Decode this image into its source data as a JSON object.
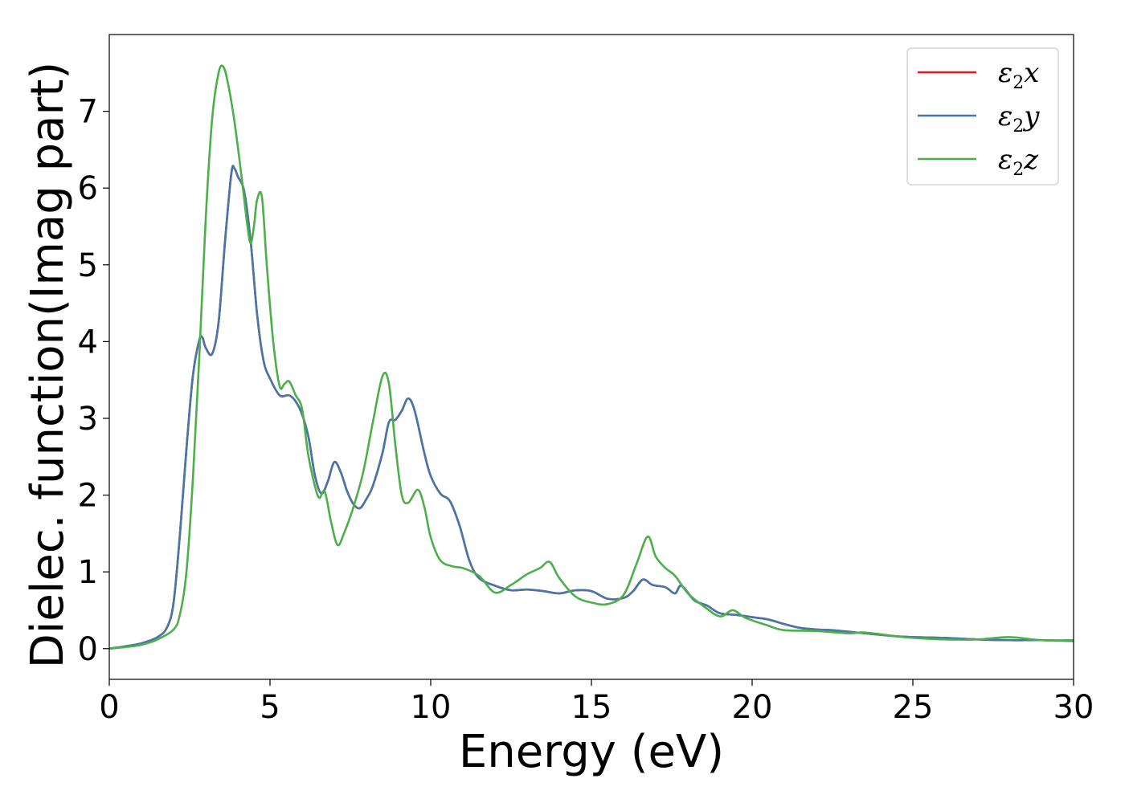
{
  "chart_data": {
    "type": "line",
    "xlabel": "Energy (eV)",
    "ylabel": "Dielec. function(Imag part)",
    "xlim": [
      0,
      30
    ],
    "ylim": [
      -0.4,
      8.0
    ],
    "xticks": [
      "0",
      "5",
      "10",
      "15",
      "20",
      "25",
      "30"
    ],
    "yticks": [
      "0",
      "1",
      "2",
      "3",
      "4",
      "5",
      "6",
      "7"
    ],
    "grid": false,
    "legend_position": "top-right",
    "series": [
      {
        "name": "ε₂x",
        "legend": {
          "base": "ε",
          "sub": "2",
          "var": "x"
        },
        "color": "#e41a1c",
        "x": [
          0,
          0.5,
          1.0,
          1.5,
          1.8,
          2.0,
          2.2,
          2.4,
          2.6,
          2.8,
          2.9,
          3.0,
          3.2,
          3.4,
          3.6,
          3.8,
          3.9,
          4.0,
          4.2,
          4.4,
          4.6,
          4.8,
          5.0,
          5.3,
          5.6,
          5.8,
          6.0,
          6.2,
          6.4,
          6.6,
          6.8,
          7.0,
          7.2,
          7.4,
          7.6,
          7.8,
          8.0,
          8.2,
          8.5,
          8.7,
          8.9,
          9.1,
          9.3,
          9.5,
          9.8,
          10.0,
          10.3,
          10.6,
          10.9,
          11.2,
          11.5,
          12.0,
          12.5,
          13.0,
          13.5,
          14.0,
          14.5,
          15.0,
          15.5,
          16.0,
          16.3,
          16.6,
          16.9,
          17.3,
          17.6,
          17.8,
          18.2,
          18.6,
          19.0,
          19.5,
          20.0,
          20.5,
          21.0,
          21.5,
          22.0,
          22.5,
          23.0,
          23.5,
          24.0,
          24.5,
          25.0,
          26.0,
          27.0,
          28.0,
          29.0,
          30.0
        ],
        "y": [
          0.0,
          0.03,
          0.07,
          0.15,
          0.28,
          0.6,
          1.5,
          2.6,
          3.55,
          4.02,
          4.05,
          3.92,
          3.84,
          4.25,
          5.3,
          6.2,
          6.25,
          6.15,
          5.95,
          5.3,
          4.35,
          3.75,
          3.52,
          3.3,
          3.3,
          3.22,
          3.05,
          2.75,
          2.25,
          2.02,
          2.18,
          2.43,
          2.3,
          2.05,
          1.88,
          1.83,
          1.95,
          2.12,
          2.55,
          2.95,
          2.98,
          3.1,
          3.26,
          3.1,
          2.55,
          2.25,
          2.02,
          1.92,
          1.6,
          1.15,
          0.92,
          0.82,
          0.76,
          0.77,
          0.75,
          0.72,
          0.76,
          0.75,
          0.65,
          0.66,
          0.75,
          0.9,
          0.83,
          0.8,
          0.72,
          0.82,
          0.63,
          0.56,
          0.46,
          0.44,
          0.41,
          0.38,
          0.32,
          0.27,
          0.25,
          0.24,
          0.22,
          0.2,
          0.18,
          0.16,
          0.15,
          0.14,
          0.12,
          0.11,
          0.11,
          0.1
        ]
      },
      {
        "name": "ε₂y",
        "legend": {
          "base": "ε",
          "sub": "2",
          "var": "y"
        },
        "color": "#4477aa",
        "x": [
          0,
          0.5,
          1.0,
          1.5,
          1.8,
          2.0,
          2.2,
          2.4,
          2.6,
          2.8,
          2.9,
          3.0,
          3.2,
          3.4,
          3.6,
          3.8,
          3.9,
          4.0,
          4.2,
          4.4,
          4.6,
          4.8,
          5.0,
          5.3,
          5.6,
          5.8,
          6.0,
          6.2,
          6.4,
          6.6,
          6.8,
          7.0,
          7.2,
          7.4,
          7.6,
          7.8,
          8.0,
          8.2,
          8.5,
          8.7,
          8.9,
          9.1,
          9.3,
          9.5,
          9.8,
          10.0,
          10.3,
          10.6,
          10.9,
          11.2,
          11.5,
          12.0,
          12.5,
          13.0,
          13.5,
          14.0,
          14.5,
          15.0,
          15.5,
          16.0,
          16.3,
          16.6,
          16.9,
          17.3,
          17.6,
          17.8,
          18.2,
          18.6,
          19.0,
          19.5,
          20.0,
          20.5,
          21.0,
          21.5,
          22.0,
          22.5,
          23.0,
          23.5,
          24.0,
          24.5,
          25.0,
          26.0,
          27.0,
          28.0,
          29.0,
          30.0
        ],
        "y": [
          0.0,
          0.03,
          0.07,
          0.15,
          0.28,
          0.6,
          1.5,
          2.6,
          3.55,
          4.02,
          4.05,
          3.92,
          3.84,
          4.25,
          5.3,
          6.2,
          6.25,
          6.15,
          5.95,
          5.3,
          4.35,
          3.75,
          3.52,
          3.3,
          3.3,
          3.22,
          3.05,
          2.75,
          2.25,
          2.02,
          2.18,
          2.43,
          2.3,
          2.05,
          1.88,
          1.83,
          1.95,
          2.12,
          2.55,
          2.95,
          2.98,
          3.1,
          3.26,
          3.1,
          2.55,
          2.25,
          2.02,
          1.92,
          1.6,
          1.15,
          0.92,
          0.82,
          0.76,
          0.77,
          0.75,
          0.72,
          0.76,
          0.75,
          0.65,
          0.66,
          0.75,
          0.9,
          0.83,
          0.8,
          0.72,
          0.82,
          0.63,
          0.56,
          0.46,
          0.44,
          0.41,
          0.38,
          0.32,
          0.27,
          0.25,
          0.24,
          0.22,
          0.2,
          0.18,
          0.16,
          0.15,
          0.14,
          0.12,
          0.11,
          0.11,
          0.1
        ]
      },
      {
        "name": "ε₂z",
        "legend": {
          "base": "ε",
          "sub": "2",
          "var": "z"
        },
        "color": "#4daf4a",
        "x": [
          0,
          0.5,
          1.0,
          1.5,
          2.0,
          2.2,
          2.4,
          2.6,
          2.8,
          3.0,
          3.2,
          3.4,
          3.55,
          3.7,
          3.9,
          4.1,
          4.3,
          4.4,
          4.5,
          4.6,
          4.75,
          4.9,
          5.1,
          5.3,
          5.45,
          5.6,
          5.8,
          6.0,
          6.2,
          6.5,
          6.7,
          6.9,
          7.1,
          7.3,
          7.6,
          7.9,
          8.2,
          8.5,
          8.7,
          8.9,
          9.1,
          9.3,
          9.6,
          9.8,
          10.0,
          10.3,
          10.7,
          11.0,
          11.5,
          12.0,
          12.5,
          13.0,
          13.4,
          13.7,
          14.0,
          14.5,
          15.0,
          15.5,
          16.0,
          16.4,
          16.75,
          17.0,
          17.3,
          17.6,
          18.0,
          18.5,
          19.0,
          19.4,
          19.8,
          20.5,
          21.0,
          22.0,
          23.0,
          23.5,
          24.5,
          25.0,
          26.0,
          27.0,
          28.0,
          29.0,
          30.0
        ],
        "y": [
          0.0,
          0.02,
          0.05,
          0.12,
          0.25,
          0.45,
          1.0,
          2.2,
          3.8,
          5.6,
          6.9,
          7.5,
          7.58,
          7.35,
          6.85,
          6.2,
          5.5,
          5.28,
          5.5,
          5.85,
          5.88,
          5.0,
          4.0,
          3.42,
          3.45,
          3.48,
          3.3,
          3.12,
          2.5,
          1.98,
          2.05,
          1.65,
          1.35,
          1.5,
          1.85,
          2.3,
          2.95,
          3.55,
          3.45,
          2.65,
          2.0,
          1.9,
          2.07,
          1.85,
          1.45,
          1.15,
          1.07,
          1.05,
          0.95,
          0.73,
          0.83,
          0.97,
          1.05,
          1.13,
          0.92,
          0.68,
          0.6,
          0.58,
          0.7,
          1.1,
          1.46,
          1.2,
          1.05,
          0.95,
          0.72,
          0.55,
          0.42,
          0.5,
          0.4,
          0.3,
          0.24,
          0.23,
          0.2,
          0.21,
          0.16,
          0.14,
          0.12,
          0.12,
          0.15,
          0.11,
          0.11
        ]
      }
    ]
  }
}
